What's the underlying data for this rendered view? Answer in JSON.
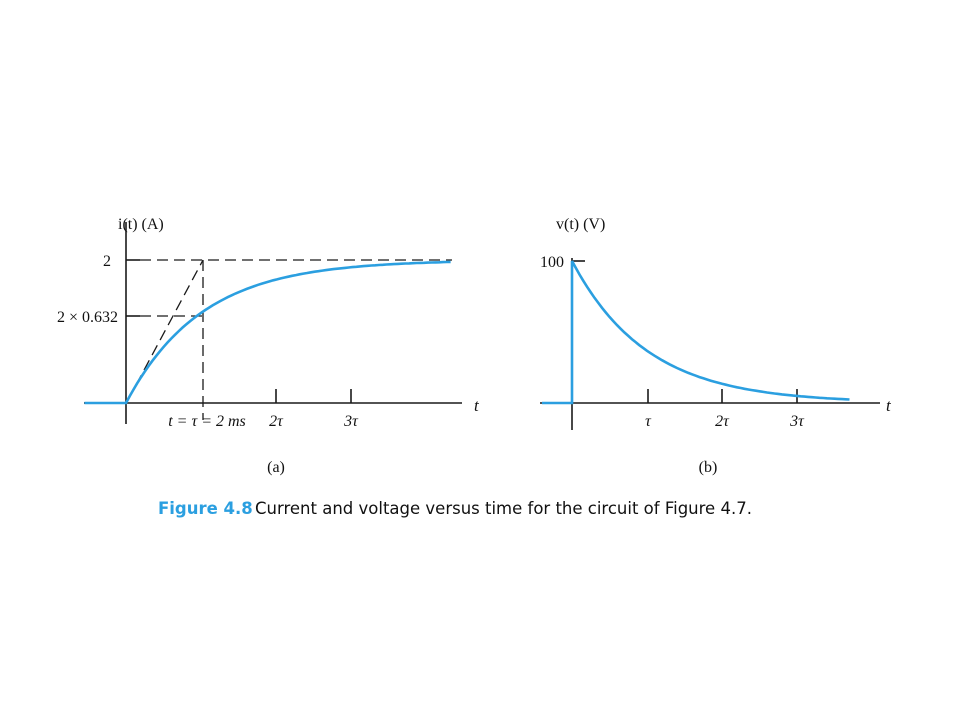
{
  "figure": {
    "number": "Figure 4.8",
    "caption": "Current and voltage versus time for the circuit of Figure 4.7."
  },
  "colors": {
    "curve": "#2b9fe0",
    "axes": "#1a1a1a",
    "caption_number": "#2b9fe0"
  },
  "chart_data": [
    {
      "type": "line",
      "panel_label": "(a)",
      "ylabel": "i(t) (A)",
      "xlabel": "t",
      "tau_ms": 2,
      "xlim": [
        -0.55,
        4.3
      ],
      "ylim": [
        0,
        2
      ],
      "yticks": [
        {
          "value": 2,
          "label": "2"
        },
        {
          "value": 1.264,
          "label": "2 × 0.632"
        }
      ],
      "xticks": [
        {
          "value": 1,
          "label": "t = τ = 2 ms"
        },
        {
          "value": 2,
          "label": "2τ"
        },
        {
          "value": 3,
          "label": "3τ"
        }
      ],
      "x_units": "tau",
      "series": [
        {
          "x": [
            -0.55,
            0,
            0.25,
            0.5,
            0.75,
            1,
            1.25,
            1.5,
            1.75,
            2,
            2.5,
            3,
            3.5,
            4.3
          ],
          "y": [
            0,
            0,
            0.442,
            0.787,
            1.055,
            1.264,
            1.427,
            1.554,
            1.652,
            1.729,
            1.836,
            1.9,
            1.94,
            1.973
          ]
        }
      ],
      "annotations": [
        "initial-slope tangent line from (0,0) to (τ,2)",
        "dashed guide at i = 2",
        "dashed guide at i = 2 × 0.632",
        "dashed vertical at t = τ"
      ]
    },
    {
      "type": "line",
      "panel_label": "(b)",
      "ylabel": "v(t) (V)",
      "xlabel": "t",
      "xlim": [
        -0.4,
        4.3
      ],
      "ylim": [
        0,
        100
      ],
      "yticks": [
        {
          "value": 100,
          "label": "100"
        }
      ],
      "xticks": [
        {
          "value": 1,
          "label": "τ"
        },
        {
          "value": 2,
          "label": "2τ"
        },
        {
          "value": 3,
          "label": "3τ"
        }
      ],
      "x_units": "tau",
      "series": [
        {
          "x": [
            -0.4,
            0,
            0,
            0.25,
            0.5,
            0.75,
            1,
            1.25,
            1.5,
            2,
            2.5,
            3,
            3.5
          ],
          "y": [
            0,
            0,
            100,
            77.9,
            60.7,
            47.2,
            36.8,
            28.7,
            22.3,
            13.5,
            8.2,
            5.0,
            3.0
          ]
        }
      ]
    }
  ]
}
